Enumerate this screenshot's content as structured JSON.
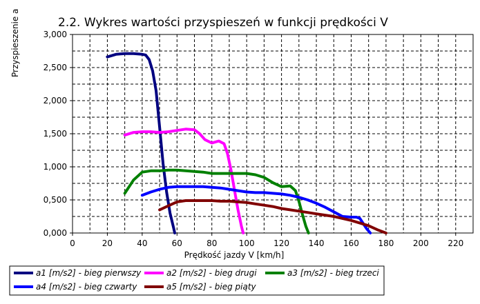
{
  "chart_data": {
    "type": "line",
    "title": "2.2. Wykres wartości przyspieszeń w funkcji prędkości V",
    "xlabel": "Prędkość jazdy V [km/h]",
    "ylabel": "Przyspieszenie  a",
    "xlim": [
      0,
      230
    ],
    "ylim": [
      0,
      3
    ],
    "x_ticks": [
      0,
      20,
      40,
      60,
      80,
      100,
      120,
      140,
      160,
      180,
      200,
      220
    ],
    "x_tick_labels": [
      "0",
      "20",
      "40",
      "60",
      "80",
      "100",
      "120",
      "140",
      "160",
      "180",
      "200",
      "220"
    ],
    "y_ticks": [
      0,
      0.5,
      1,
      1.5,
      2,
      2.5,
      3
    ],
    "y_tick_labels": [
      "0,000",
      "0,500",
      "1,000",
      "1,500",
      "2,000",
      "2,500",
      "3,000"
    ],
    "grid": true,
    "legend_position": "bottom",
    "series": [
      {
        "name": "a1 [m/s2] - bieg pierwszy",
        "color": "#000080",
        "x": [
          20,
          25,
          30,
          35,
          40,
          42,
          44,
          46,
          48,
          50,
          52,
          54,
          56,
          58,
          58.7
        ],
        "y": [
          2.66,
          2.7,
          2.71,
          2.71,
          2.7,
          2.69,
          2.62,
          2.45,
          2.15,
          1.6,
          1.05,
          0.62,
          0.3,
          0.08,
          0.0
        ]
      },
      {
        "name": "a2 [m/s2] - bieg drugi",
        "color": "#ff00ff",
        "x": [
          30,
          35,
          40,
          45,
          50,
          55,
          60,
          65,
          70,
          73,
          76,
          80,
          84,
          87,
          89,
          91,
          93,
          95,
          97,
          98
        ],
        "y": [
          1.48,
          1.52,
          1.53,
          1.53,
          1.52,
          1.53,
          1.55,
          1.57,
          1.56,
          1.5,
          1.41,
          1.36,
          1.39,
          1.35,
          1.2,
          0.95,
          0.65,
          0.35,
          0.1,
          0.0
        ]
      },
      {
        "name": "a3 [m/s2] - bieg trzeci",
        "color": "#008000",
        "x": [
          30,
          35,
          40,
          45,
          50,
          55,
          60,
          65,
          70,
          75,
          80,
          85,
          90,
          95,
          100,
          105,
          110,
          115,
          120,
          125,
          128,
          130,
          132,
          134,
          135.5
        ],
        "y": [
          0.6,
          0.8,
          0.92,
          0.94,
          0.94,
          0.95,
          0.95,
          0.94,
          0.93,
          0.92,
          0.9,
          0.9,
          0.9,
          0.9,
          0.9,
          0.88,
          0.84,
          0.76,
          0.7,
          0.71,
          0.64,
          0.48,
          0.28,
          0.1,
          0.0
        ]
      },
      {
        "name": "a4 [m/s2] - bieg czwarty",
        "color": "#0000ff",
        "x": [
          40,
          45,
          50,
          55,
          60,
          65,
          70,
          75,
          80,
          85,
          90,
          95,
          100,
          105,
          110,
          115,
          120,
          125,
          130,
          135,
          140,
          145,
          150,
          155,
          160,
          163,
          165,
          167,
          169,
          171
        ],
        "y": [
          0.57,
          0.62,
          0.66,
          0.69,
          0.7,
          0.7,
          0.7,
          0.7,
          0.69,
          0.68,
          0.66,
          0.64,
          0.62,
          0.61,
          0.61,
          0.6,
          0.59,
          0.57,
          0.54,
          0.5,
          0.45,
          0.39,
          0.32,
          0.25,
          0.24,
          0.24,
          0.22,
          0.14,
          0.06,
          0.0
        ]
      },
      {
        "name": "a5 [m/s2] - bieg piąty",
        "color": "#800000",
        "x": [
          50,
          55,
          60,
          65,
          70,
          75,
          80,
          85,
          90,
          95,
          100,
          105,
          110,
          115,
          120,
          125,
          130,
          135,
          140,
          145,
          150,
          155,
          160,
          165,
          170,
          175,
          180
        ],
        "y": [
          0.35,
          0.41,
          0.47,
          0.49,
          0.49,
          0.49,
          0.49,
          0.48,
          0.48,
          0.47,
          0.46,
          0.44,
          0.42,
          0.4,
          0.37,
          0.35,
          0.33,
          0.31,
          0.29,
          0.27,
          0.25,
          0.22,
          0.19,
          0.15,
          0.11,
          0.05,
          0.0
        ]
      }
    ]
  }
}
